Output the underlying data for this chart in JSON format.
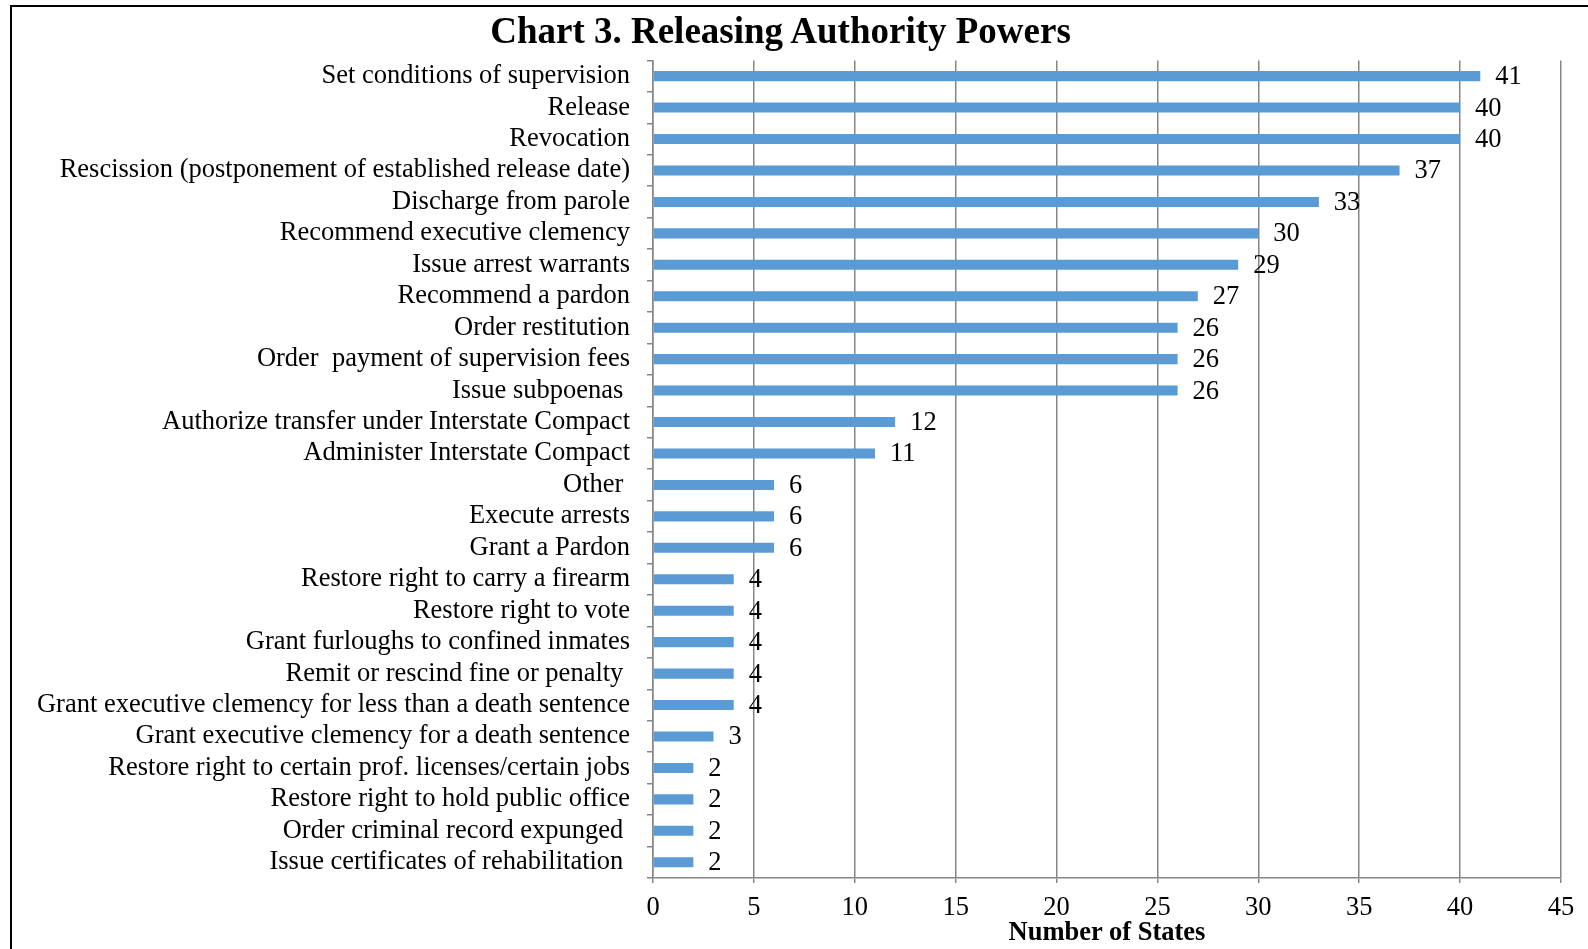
{
  "chart_data": {
    "type": "bar",
    "orientation": "horizontal",
    "title": "Chart 3. Releasing Authority Powers",
    "xlabel": "Number of States",
    "categories": [
      "Set conditions of supervision",
      "Release",
      "Revocation",
      "Rescission (postponement of established release date)",
      "Discharge from parole",
      "Recommend executive clemency",
      "Issue arrest warrants",
      "Recommend a pardon",
      "Order restitution",
      "Order  payment of supervision fees",
      "Issue subpoenas ",
      "Authorize transfer under Interstate Compact",
      "Administer Interstate Compact",
      "Other ",
      "Execute arrests",
      "Grant a Pardon",
      "Restore right to carry a firearm",
      "Restore right to vote",
      "Grant furloughs to confined inmates",
      "Remit or rescind fine or penalty ",
      "Grant executive clemency for less than a death sentence",
      "Grant executive clemency for a death sentence",
      "Restore right to certain prof. licenses/certain jobs",
      "Restore right to hold public office",
      "Order criminal record expunged ",
      "Issue certificates of rehabilitation "
    ],
    "values": [
      41,
      40,
      40,
      37,
      33,
      30,
      29,
      27,
      26,
      26,
      26,
      12,
      11,
      6,
      6,
      6,
      4,
      4,
      4,
      4,
      4,
      3,
      2,
      2,
      2,
      2
    ],
    "color": "#5b9bd5",
    "xlim": [
      0,
      45
    ],
    "xticks": [
      0,
      5,
      10,
      15,
      20,
      25,
      30,
      35,
      40,
      45
    ],
    "grid": "x",
    "data_labels": true
  }
}
